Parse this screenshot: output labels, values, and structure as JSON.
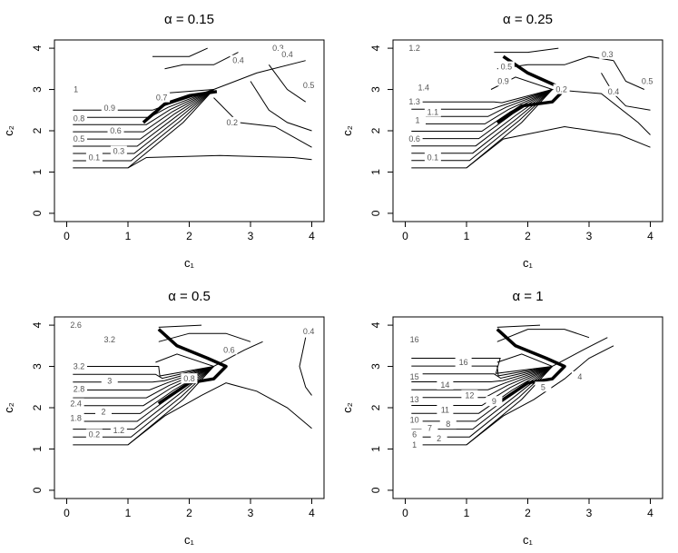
{
  "chart_data": [
    {
      "type": "contour",
      "title": "α = 0.15",
      "xlabel": "c₁",
      "ylabel": "c₂",
      "xlim": [
        -0.2,
        4.2
      ],
      "ylim": [
        -0.2,
        4.2
      ],
      "xticks": [
        "0",
        "1",
        "2",
        "3",
        "4"
      ],
      "yticks": [
        "0",
        "1",
        "2",
        "3",
        "4"
      ],
      "contour_labels": [
        "1",
        "0.9",
        "0.8",
        "0.6",
        "0.5",
        "0.3",
        "0.1",
        "0.7",
        "0.2",
        "0.3",
        "0.4",
        "0.4",
        "0.5"
      ]
    },
    {
      "type": "contour",
      "title": "α = 0.25",
      "xlabel": "c₁",
      "ylabel": "c₂",
      "xlim": [
        -0.2,
        4.2
      ],
      "ylim": [
        -0.2,
        4.2
      ],
      "xticks": [
        "0",
        "1",
        "2",
        "3",
        "4"
      ],
      "yticks": [
        "0",
        "1",
        "2",
        "3",
        "4"
      ],
      "contour_labels": [
        "1.2",
        "1.4",
        "1.3",
        "1.1",
        "1",
        "0.6",
        "0.1",
        "0.9",
        "0.5",
        "0.2",
        "0.3",
        "0.4",
        "0.5"
      ]
    },
    {
      "type": "contour",
      "title": "α = 0.5",
      "xlabel": "c₁",
      "ylabel": "c₂",
      "xlim": [
        -0.2,
        4.2
      ],
      "ylim": [
        -0.2,
        4.2
      ],
      "xticks": [
        "0",
        "1",
        "2",
        "3",
        "4"
      ],
      "yticks": [
        "0",
        "1",
        "2",
        "3",
        "4"
      ],
      "contour_labels": [
        "2.6",
        "3.2",
        "3.2",
        "3",
        "2.8",
        "2.4",
        "1.8",
        "2",
        "1.2",
        "0.2",
        "0.8",
        "0.6",
        "0.4"
      ]
    },
    {
      "type": "contour",
      "title": "α = 1",
      "xlabel": "c₁",
      "ylabel": "c₂",
      "xlim": [
        -0.2,
        4.2
      ],
      "ylim": [
        -0.2,
        4.2
      ],
      "xticks": [
        "0",
        "1",
        "2",
        "3",
        "4"
      ],
      "yticks": [
        "0",
        "1",
        "2",
        "3",
        "4"
      ],
      "contour_labels": [
        "16",
        "16",
        "15",
        "14",
        "13",
        "12",
        "11",
        "10",
        "9",
        "8",
        "7",
        "6",
        "5",
        "4",
        "2",
        "1"
      ]
    }
  ]
}
